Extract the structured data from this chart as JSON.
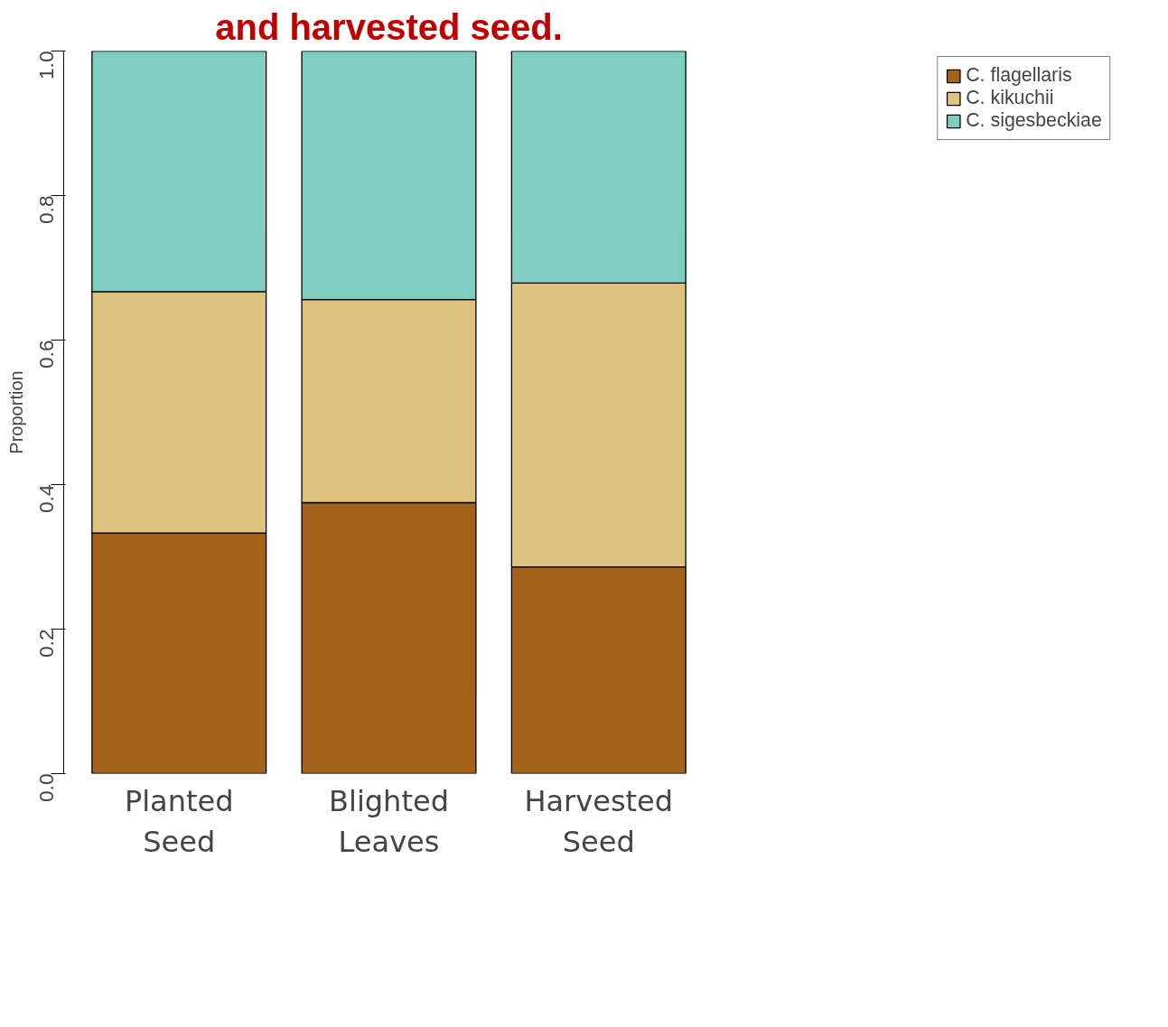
{
  "chart_data": {
    "type": "bar",
    "stacked": true,
    "title": "and harvested seed.",
    "ylabel": "Proportion",
    "categories": [
      "Planted Seed",
      "Blighted Leaves",
      "Harvested Seed"
    ],
    "series": [
      {
        "name": "C. flagellaris",
        "color": "#a6611a",
        "values": [
          0.333,
          0.375,
          0.286
        ]
      },
      {
        "name": "C. kikuchii",
        "color": "#dfc27d",
        "values": [
          0.334,
          0.281,
          0.393
        ]
      },
      {
        "name": "C. sigesbeckiae",
        "color": "#80cdc1",
        "values": [
          0.333,
          0.344,
          0.321
        ]
      }
    ],
    "ylim": [
      0,
      1
    ],
    "yticks": [
      {
        "value": 0,
        "label": "0.0"
      },
      0.2,
      0.4,
      0.6,
      0.8,
      {
        "value": 1,
        "label": "1.0"
      }
    ],
    "grid": false,
    "legend": "top right"
  }
}
